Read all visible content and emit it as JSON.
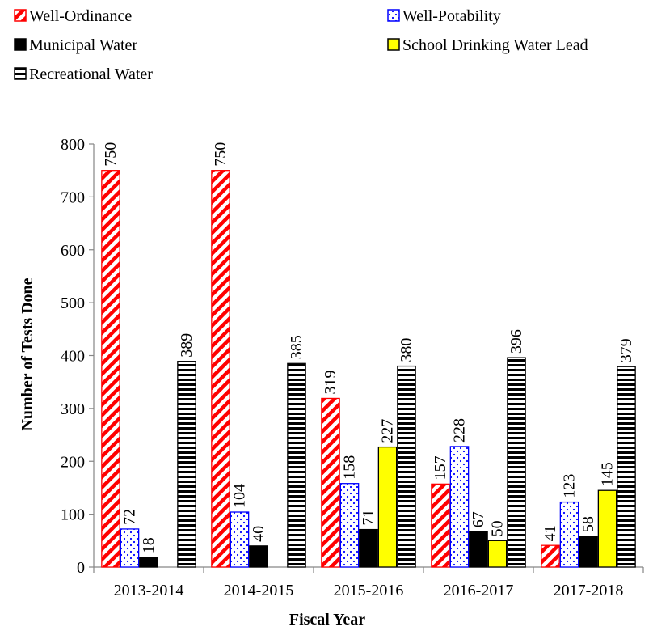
{
  "chart_data": {
    "type": "bar",
    "title": "",
    "xlabel": "Fiscal Year",
    "ylabel": "Number of Tests Done",
    "ylim": [
      0,
      800
    ],
    "yticks": [
      0,
      100,
      200,
      300,
      400,
      500,
      600,
      700,
      800
    ],
    "grid": false,
    "legend_position": "top",
    "categories": [
      "2013-2014",
      "2014-2015",
      "2015-2016",
      "2016-2017",
      "2017-2018"
    ],
    "series": [
      {
        "name": "Well-Ordinance",
        "values": [
          750,
          750,
          319,
          157,
          41
        ],
        "color": "#ff0000",
        "pattern": "diagonal-stripes"
      },
      {
        "name": "Well-Potability",
        "values": [
          72,
          104,
          158,
          228,
          123
        ],
        "color": "#0000ff",
        "pattern": "dots"
      },
      {
        "name": "Municipal Water",
        "values": [
          18,
          40,
          71,
          67,
          58
        ],
        "color": "#000000",
        "pattern": "solid"
      },
      {
        "name": "School Drinking Water Lead",
        "values": [
          null,
          null,
          227,
          50,
          145
        ],
        "color": "#ffff00",
        "pattern": "solid"
      },
      {
        "name": "Recreational Water",
        "values": [
          389,
          385,
          380,
          396,
          379
        ],
        "color": "#000000",
        "pattern": "horizontal-stripes"
      }
    ]
  }
}
